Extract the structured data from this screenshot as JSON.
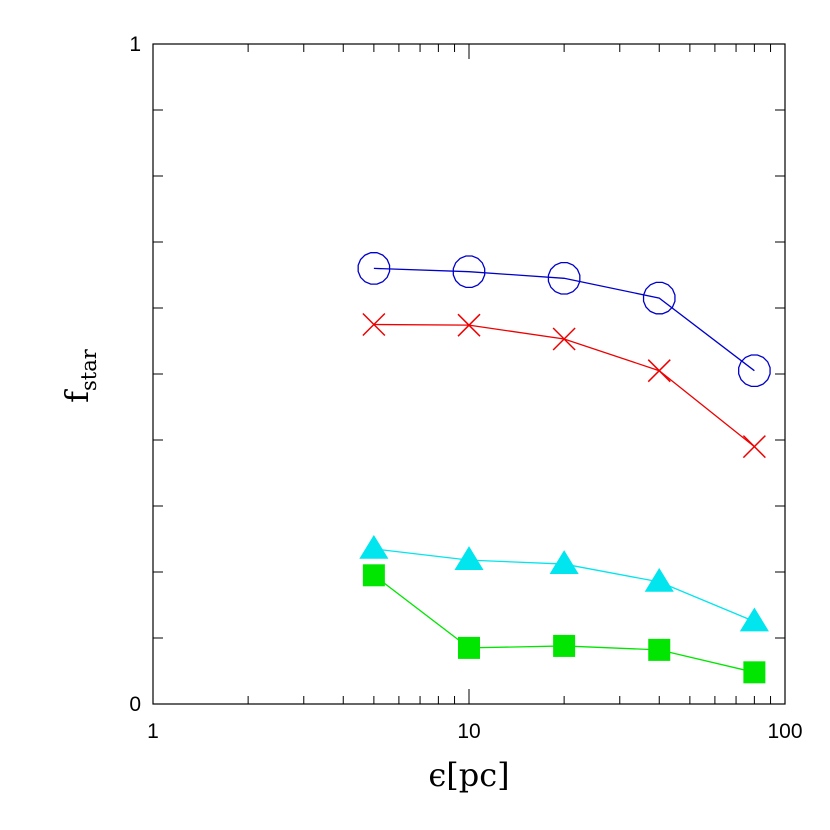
{
  "chart_data": {
    "type": "line",
    "title": "",
    "xlabel": "ϵ[pc]",
    "ylabel": {
      "main": "f",
      "sub": "star"
    },
    "xscale": "log",
    "xlim": [
      1,
      100
    ],
    "ylim": [
      0,
      1
    ],
    "x_tick_labels": [
      {
        "value": 1,
        "label": "1"
      },
      {
        "value": 10,
        "label": "10"
      },
      {
        "value": 100,
        "label": "100"
      }
    ],
    "y_tick_labels": [
      {
        "value": 0,
        "label": "0"
      },
      {
        "value": 1,
        "label": "1"
      }
    ],
    "y_minor_ticks": [
      0.1,
      0.2,
      0.3,
      0.4,
      0.5,
      0.6,
      0.7,
      0.8,
      0.9
    ],
    "grid": false,
    "x": [
      5,
      10,
      20,
      40,
      80
    ],
    "series": [
      {
        "marker": "open-circle",
        "color": "#0000cc",
        "values": [
          0.66,
          0.655,
          0.645,
          0.615,
          0.505
        ]
      },
      {
        "marker": "cross",
        "color": "#ee0000",
        "values": [
          0.575,
          0.574,
          0.553,
          0.505,
          0.39
        ]
      },
      {
        "marker": "filled-triangle",
        "color": "#00e5ee",
        "values": [
          0.235,
          0.218,
          0.212,
          0.185,
          0.125
        ]
      },
      {
        "marker": "filled-square",
        "color": "#00e600",
        "values": [
          0.195,
          0.085,
          0.088,
          0.082,
          0.048
        ]
      }
    ]
  }
}
